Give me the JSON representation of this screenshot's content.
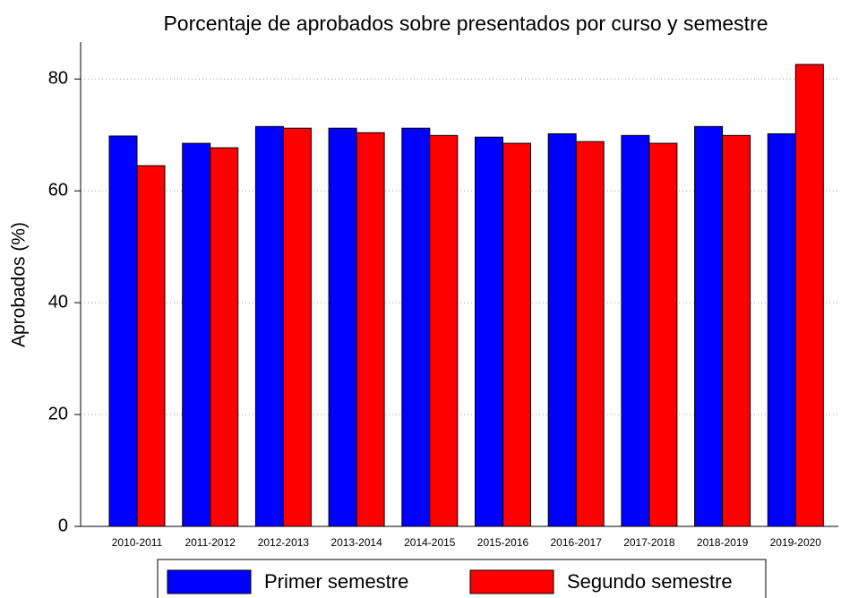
{
  "chart_data": {
    "type": "bar",
    "title": "Porcentaje de aprobados sobre presentados por curso y semestre",
    "y_label": "Aprobados (%)",
    "categories": [
      "2010-2011",
      "2011-2012",
      "2012-2013",
      "2013-2014",
      "2014-2015",
      "2015-2016",
      "2016-2017",
      "2017-2018",
      "2018-2019",
      "2019-2020"
    ],
    "series": [
      {
        "name": "Primer semestre",
        "color": "#0000ff",
        "values": [
          69.8,
          68.5,
          71.5,
          71.2,
          71.2,
          69.6,
          70.2,
          69.9,
          71.5,
          70.2
        ]
      },
      {
        "name": "Segundo semestre",
        "color": "#ff0000",
        "values": [
          64.5,
          67.7,
          71.2,
          70.4,
          69.9,
          68.5,
          68.8,
          68.5,
          69.9,
          82.6
        ]
      }
    ],
    "ylim": [
      0,
      86.6
    ],
    "yticks": [
      0,
      20,
      40,
      60,
      80
    ],
    "grid": true,
    "legend": "bottom"
  }
}
